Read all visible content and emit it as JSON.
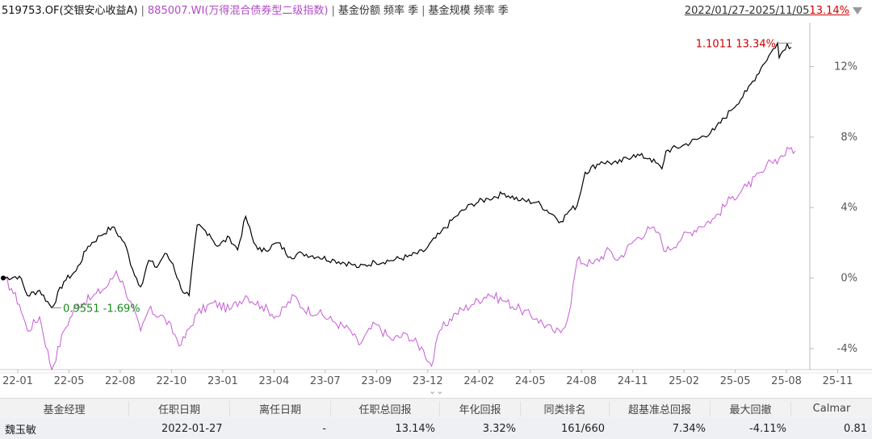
{
  "header": {
    "fund_label": "519753.OF(交银安心收益A)",
    "sep1": "|",
    "index_label": "885007.WI(万得混合债券型二级指数)",
    "sep2": "|",
    "share_label": "基金份额 频率 季",
    "sep3": "|",
    "scale_label": "基金规模 频率 季",
    "date_range": "2022/01/27-2025/11/05",
    "range_return": "13.14%"
  },
  "chart_data": {
    "type": "line",
    "x_ticks": [
      "22-01",
      "22-05",
      "22-08",
      "22-10",
      "23-01",
      "23-04",
      "23-07",
      "23-09",
      "23-12",
      "24-02",
      "24-05",
      "24-08",
      "24-11",
      "25-02",
      "25-05",
      "25-08",
      "25-11"
    ],
    "y_ticks": [
      "12%",
      "8%",
      "4%",
      "0%",
      "-4%"
    ],
    "ylim": [
      -5.2,
      14.5
    ],
    "colors": {
      "fund": "#000000",
      "index": "#c65bd6",
      "max_label": "#cc0000",
      "min_label": "#1a8a1a"
    },
    "annotations": {
      "max": {
        "text": "1.1011 13.34%",
        "x": 0.958,
        "y": 13.34
      },
      "min": {
        "text": "0.9551 -1.69%",
        "x": 0.06,
        "y": -1.69
      }
    },
    "series": [
      {
        "key": "fund",
        "values": [
          [
            0,
            0
          ],
          [
            0.02,
            0.1
          ],
          [
            0.03,
            -1.0
          ],
          [
            0.045,
            -0.7
          ],
          [
            0.06,
            -1.69
          ],
          [
            0.075,
            -0.2
          ],
          [
            0.09,
            0.4
          ],
          [
            0.105,
            1.8
          ],
          [
            0.12,
            2.4
          ],
          [
            0.135,
            2.9
          ],
          [
            0.15,
            2.0
          ],
          [
            0.16,
            0.5
          ],
          [
            0.17,
            -0.5
          ],
          [
            0.18,
            1.0
          ],
          [
            0.19,
            0.6
          ],
          [
            0.2,
            1.4
          ],
          [
            0.21,
            0.8
          ],
          [
            0.22,
            -0.6
          ],
          [
            0.23,
            -1.0
          ],
          [
            0.24,
            3.0
          ],
          [
            0.255,
            2.5
          ],
          [
            0.265,
            1.8
          ],
          [
            0.28,
            2.3
          ],
          [
            0.29,
            1.6
          ],
          [
            0.3,
            3.5
          ],
          [
            0.31,
            2.0
          ],
          [
            0.32,
            1.5
          ],
          [
            0.34,
            2.0
          ],
          [
            0.355,
            1.2
          ],
          [
            0.37,
            1.4
          ],
          [
            0.39,
            1.2
          ],
          [
            0.41,
            1.0
          ],
          [
            0.43,
            0.8
          ],
          [
            0.44,
            0.6
          ],
          [
            0.46,
            0.9
          ],
          [
            0.48,
            1.0
          ],
          [
            0.5,
            1.2
          ],
          [
            0.52,
            1.5
          ],
          [
            0.54,
            2.5
          ],
          [
            0.56,
            3.5
          ],
          [
            0.58,
            4.2
          ],
          [
            0.6,
            4.5
          ],
          [
            0.62,
            4.8
          ],
          [
            0.64,
            4.4
          ],
          [
            0.66,
            4.3
          ],
          [
            0.68,
            3.6
          ],
          [
            0.69,
            3.2
          ],
          [
            0.7,
            3.8
          ],
          [
            0.71,
            4.1
          ],
          [
            0.72,
            6.0
          ],
          [
            0.74,
            6.6
          ],
          [
            0.76,
            6.5
          ],
          [
            0.78,
            7.0
          ],
          [
            0.8,
            6.8
          ],
          [
            0.815,
            6.2
          ],
          [
            0.82,
            7.2
          ],
          [
            0.84,
            7.5
          ],
          [
            0.86,
            7.9
          ],
          [
            0.88,
            8.4
          ],
          [
            0.9,
            9.5
          ],
          [
            0.92,
            10.6
          ],
          [
            0.94,
            12.1
          ],
          [
            0.95,
            12.8
          ],
          [
            0.958,
            13.34
          ],
          [
            0.96,
            12.5
          ],
          [
            0.97,
            13.3
          ],
          [
            0.975,
            13.1
          ]
        ]
      },
      {
        "key": "index",
        "values": [
          [
            0,
            0
          ],
          [
            0.01,
            -0.6
          ],
          [
            0.02,
            -1.5
          ],
          [
            0.03,
            -3.0
          ],
          [
            0.045,
            -2.2
          ],
          [
            0.06,
            -5.2
          ],
          [
            0.075,
            -3.0
          ],
          [
            0.09,
            -1.6
          ],
          [
            0.11,
            -1.1
          ],
          [
            0.13,
            -0.4
          ],
          [
            0.14,
            0.4
          ],
          [
            0.15,
            -0.5
          ],
          [
            0.17,
            -3.0
          ],
          [
            0.18,
            -1.8
          ],
          [
            0.2,
            -2.3
          ],
          [
            0.22,
            -3.8
          ],
          [
            0.24,
            -2.0
          ],
          [
            0.26,
            -1.4
          ],
          [
            0.28,
            -1.8
          ],
          [
            0.3,
            -1.0
          ],
          [
            0.32,
            -1.6
          ],
          [
            0.34,
            -2.2
          ],
          [
            0.36,
            -1.0
          ],
          [
            0.37,
            -1.7
          ],
          [
            0.39,
            -2.0
          ],
          [
            0.41,
            -2.5
          ],
          [
            0.43,
            -3.0
          ],
          [
            0.44,
            -3.8
          ],
          [
            0.46,
            -2.6
          ],
          [
            0.48,
            -3.5
          ],
          [
            0.5,
            -3.2
          ],
          [
            0.52,
            -4.1
          ],
          [
            0.53,
            -5.0
          ],
          [
            0.54,
            -3.0
          ],
          [
            0.56,
            -2.0
          ],
          [
            0.58,
            -1.5
          ],
          [
            0.6,
            -0.9
          ],
          [
            0.62,
            -1.3
          ],
          [
            0.64,
            -1.8
          ],
          [
            0.66,
            -2.3
          ],
          [
            0.68,
            -3.0
          ],
          [
            0.69,
            -3.1
          ],
          [
            0.7,
            -2.0
          ],
          [
            0.71,
            1.0
          ],
          [
            0.73,
            0.8
          ],
          [
            0.75,
            1.6
          ],
          [
            0.76,
            1.0
          ],
          [
            0.78,
            2.1
          ],
          [
            0.8,
            2.8
          ],
          [
            0.81,
            2.6
          ],
          [
            0.82,
            1.5
          ],
          [
            0.84,
            2.3
          ],
          [
            0.86,
            2.9
          ],
          [
            0.88,
            3.4
          ],
          [
            0.9,
            4.5
          ],
          [
            0.92,
            5.2
          ],
          [
            0.94,
            6.0
          ],
          [
            0.95,
            6.6
          ],
          [
            0.96,
            6.8
          ],
          [
            0.975,
            7.4
          ],
          [
            0.98,
            7.2
          ]
        ]
      }
    ]
  },
  "table": {
    "headers": [
      "基金经理",
      "任职日期",
      "离任日期",
      "任职总回报",
      "年化回报",
      "同类排名",
      "超基准总回报",
      "最大回撤",
      "Calmar"
    ],
    "rows": [
      [
        "魏玉敏",
        "2022-01-27",
        "-",
        "13.14%",
        "3.32%",
        "161/660",
        "7.34%",
        "-4.11%",
        "0.81"
      ]
    ]
  }
}
